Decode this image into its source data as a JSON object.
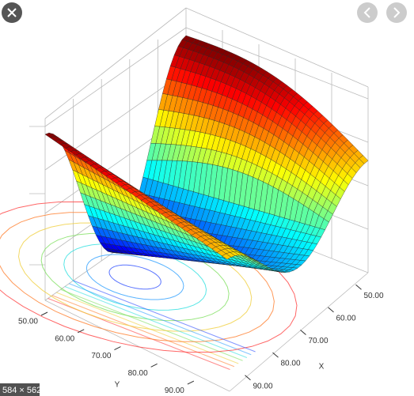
{
  "viewer": {
    "size_badge": "584 × 562"
  },
  "chart_data": {
    "type": "surface",
    "xlabel": "X",
    "ylabel": "Y",
    "xlim": [
      45,
      95
    ],
    "xticks": [
      {
        "value": 50,
        "label": "50.00"
      },
      {
        "value": 60,
        "label": "60.00"
      },
      {
        "value": 70,
        "label": "70.00"
      },
      {
        "value": 80,
        "label": "80.00"
      },
      {
        "value": 90,
        "label": "90.00"
      }
    ],
    "ylim": [
      50,
      95
    ],
    "yticks": [
      {
        "value": 50,
        "label": "50.00"
      },
      {
        "value": 60,
        "label": "60.00"
      },
      {
        "value": 70,
        "label": "70.00"
      },
      {
        "value": 80,
        "label": "80.00"
      },
      {
        "value": 90,
        "label": "90.00"
      }
    ]
  }
}
